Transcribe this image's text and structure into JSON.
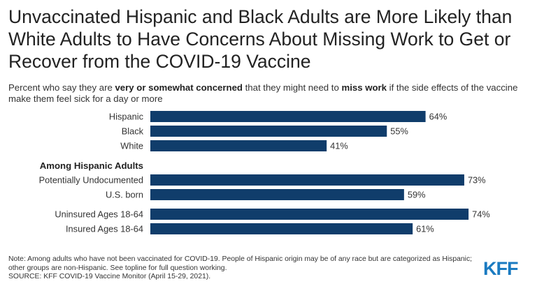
{
  "title": "Unvaccinated Hispanic and Black Adults are More Likely than White Adults to Have Concerns About Missing Work to Get or Recover from the COVID-19 Vaccine",
  "subtitle": {
    "part1": "Percent who say they are ",
    "bold1": "very or somewhat concerned",
    "part2": " that they might need to ",
    "bold2": "miss work",
    "part3": " if the side effects of the vaccine make them feel sick for a day or more"
  },
  "chart_data": {
    "type": "bar",
    "orientation": "horizontal",
    "xlim": [
      0,
      100
    ],
    "value_suffix": "%",
    "bar_color": "#103d6b",
    "groups": [
      {
        "heading": "",
        "categories": [
          "Hispanic",
          "Black",
          "White"
        ],
        "values": [
          64,
          55,
          41
        ]
      },
      {
        "heading": "Among Hispanic Adults",
        "categories": [
          "Potentially Undocumented",
          "U.S. born"
        ],
        "values": [
          73,
          59
        ]
      },
      {
        "heading": "",
        "categories": [
          "Uninsured Ages 18-64",
          "Insured Ages 18-64"
        ],
        "values": [
          74,
          61
        ]
      }
    ]
  },
  "footer": {
    "note": "Note: Among adults who have not been vaccinated for COVID-19. People of Hispanic origin may be of any race but are categorized as Hispanic; other groups are non-Hispanic. See topline for full question working.",
    "source": "SOURCE: KFF COVID-19 Vaccine Monitor (April 15-29, 2021)."
  },
  "logo": "KFF"
}
